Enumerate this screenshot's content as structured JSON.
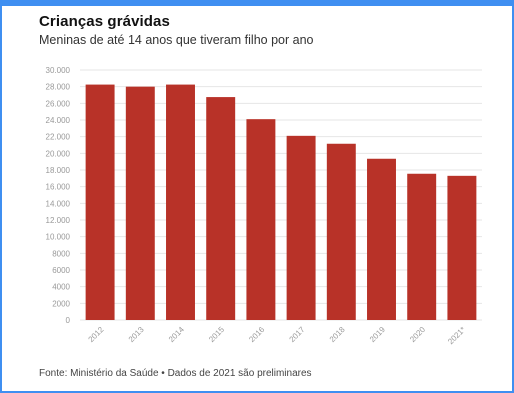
{
  "header": {
    "title": "Crianças grávidas",
    "subtitle": "Meninas de até 14 anos que tiveram filho por ano"
  },
  "footer": {
    "source": "Fonte: Ministério da Saúde • Dados de 2021 são preliminares"
  },
  "colors": {
    "bar": "#b83228",
    "grid": "#e6e6e6",
    "frame": "#3f8ff1"
  },
  "chart_data": {
    "type": "bar",
    "title": "Crianças grávidas",
    "subtitle": "Meninas de até 14 anos que tiveram filho por ano",
    "categories": [
      "2012",
      "2013",
      "2014",
      "2015",
      "2016",
      "2017",
      "2018",
      "2019",
      "2020",
      "2021*"
    ],
    "values": [
      28250,
      28000,
      28250,
      26750,
      24100,
      22100,
      21150,
      19350,
      17550,
      17300
    ],
    "xlabel": "",
    "ylabel": "",
    "ylim": [
      0,
      30000
    ],
    "yticks": [
      0,
      2000,
      4000,
      6000,
      8000,
      10000,
      12000,
      14000,
      16000,
      18000,
      20000,
      22000,
      24000,
      26000,
      28000,
      30000
    ],
    "ytick_labels": [
      "0",
      "2000",
      "4000",
      "6000",
      "8000",
      "10.000",
      "12.000",
      "14.000",
      "16.000",
      "18.000",
      "20.000",
      "22.000",
      "24.000",
      "26.000",
      "28.000",
      "30.000"
    ],
    "grid": true,
    "legend": "none"
  }
}
